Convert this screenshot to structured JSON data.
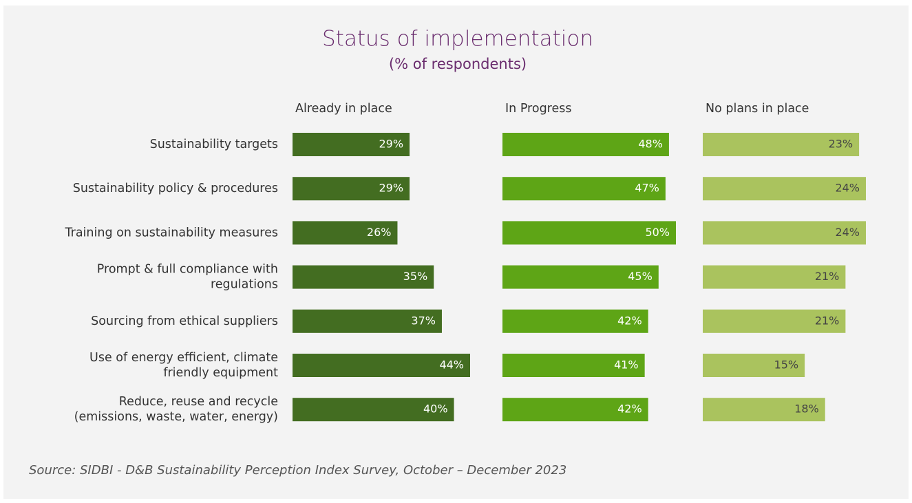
{
  "chart_data": {
    "type": "bar",
    "title": "Status of implementation",
    "subtitle": "(% of respondents)",
    "categories": [
      "Sustainability targets",
      "Sustainability policy & procedures",
      "Training on sustainability measures",
      "Prompt & full compliance with\nregulations",
      "Sourcing from ethical suppliers",
      "Use of energy efficient, climate\nfriendly equipment",
      "Reduce, reuse and recycle\n(emissions, waste, water, energy)"
    ],
    "series": [
      {
        "name": "Already in place",
        "color": "#436d21",
        "values": [
          29,
          29,
          26,
          35,
          37,
          44,
          40
        ],
        "value_labels": [
          "29%",
          "29%",
          "26%",
          "35%",
          "37%",
          "44%",
          "40%"
        ]
      },
      {
        "name": "In Progress",
        "color": "#5ea516",
        "values": [
          48,
          47,
          50,
          45,
          42,
          41,
          42
        ],
        "value_labels": [
          "48%",
          "47%",
          "50%",
          "45%",
          "42%",
          "41%",
          "42%"
        ]
      },
      {
        "name": "No plans in place",
        "color": "#aac35e",
        "values": [
          23,
          24,
          24,
          21,
          21,
          15,
          18
        ],
        "value_labels": [
          "23%",
          "24%",
          "24%",
          "21%",
          "21%",
          "15%",
          "18%"
        ]
      }
    ],
    "source": "Source: SIDBI - D&B Sustainability Perception Index Survey, October – December 2023"
  }
}
